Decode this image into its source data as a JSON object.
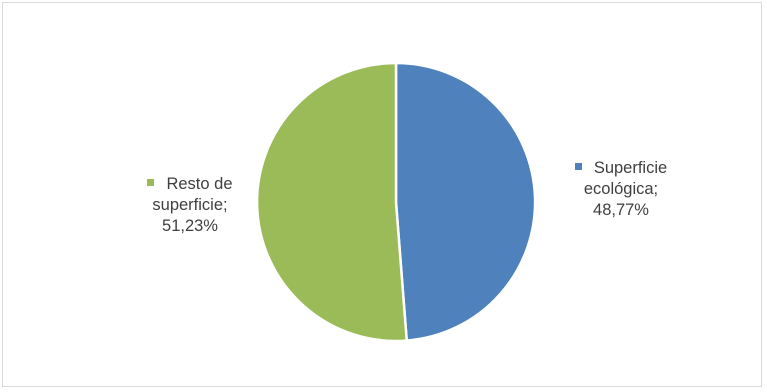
{
  "chart_data": {
    "type": "pie",
    "slices": [
      {
        "name": "Superficie ecológica",
        "value": 48.77,
        "value_label": "48,77%",
        "color": "#4f81bd",
        "label_lines": [
          "Superficie",
          "ecológica;",
          "48,77%"
        ]
      },
      {
        "name": "Resto de superficie",
        "value": 51.23,
        "value_label": "51,23%",
        "color": "#9bbb59",
        "label_lines": [
          "Resto de",
          "superficie;",
          "51,23%"
        ]
      }
    ]
  }
}
